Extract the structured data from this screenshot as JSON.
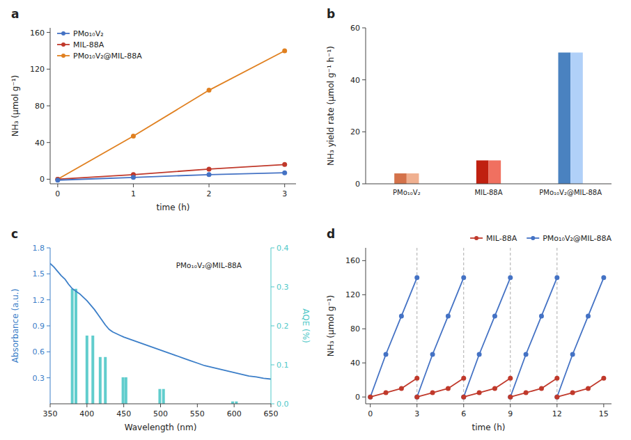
{
  "chart_data": [
    {
      "type": "line",
      "title": "a",
      "x": [
        0,
        1,
        2,
        3
      ],
      "series": [
        {
          "name": "PMo₁₀V₂",
          "color": "#4472C4",
          "marker": "circle",
          "values": [
            -1,
            2,
            5,
            7
          ]
        },
        {
          "name": "MIL-88A",
          "color": "#C0392B",
          "marker": "circle",
          "values": [
            0,
            5,
            11,
            16
          ]
        },
        {
          "name": "PMo₁₀V₂@MIL-88A",
          "color": "#E08020",
          "marker": "circle",
          "values": [
            0,
            47,
            97,
            140
          ]
        }
      ],
      "xlabel": "time (h)",
      "ylabel": "NH₃ (μmol g⁻¹)",
      "xlim": [
        -0.1,
        3.15
      ],
      "xticks": [
        0,
        1,
        2,
        3
      ],
      "ylim": [
        -5,
        165
      ],
      "yticks": [
        0,
        40,
        80,
        120,
        160
      ],
      "legend": "upper-left",
      "grid": false
    },
    {
      "type": "bar",
      "title": "b",
      "categories": [
        "PMo₁₀V₂",
        "MIL-88A",
        "PMo₁₀V₂@MIL-88A"
      ],
      "series": [
        {
          "colors": [
            "#D4724A",
            "#C02010",
            "#4A82C0"
          ],
          "values": [
            4,
            9,
            50.5
          ]
        },
        {
          "colors": [
            "#F0B090",
            "#F07060",
            "#B0D0F8"
          ],
          "values": [
            4,
            9,
            50.5
          ]
        }
      ],
      "ylabel": "NH₃ yield rate (μmol g⁻¹ h⁻¹)",
      "ylim": [
        0,
        60
      ],
      "yticks": [
        0,
        20,
        40,
        60
      ],
      "grid": false
    },
    {
      "type": "combo",
      "title": "c",
      "series": [
        {
          "type": "line",
          "color": "#3B7EC8",
          "x": [
            350,
            355,
            360,
            365,
            370,
            375,
            380,
            385,
            390,
            395,
            400,
            405,
            410,
            415,
            420,
            425,
            430,
            435,
            440,
            445,
            450,
            460,
            470,
            480,
            490,
            500,
            510,
            520,
            530,
            540,
            550,
            560,
            570,
            580,
            590,
            600,
            610,
            620,
            630,
            640,
            650
          ],
          "values": [
            1.62,
            1.58,
            1.53,
            1.48,
            1.44,
            1.38,
            1.33,
            1.3,
            1.27,
            1.23,
            1.19,
            1.14,
            1.09,
            1.03,
            0.97,
            0.91,
            0.86,
            0.83,
            0.81,
            0.79,
            0.77,
            0.74,
            0.71,
            0.68,
            0.65,
            0.62,
            0.59,
            0.56,
            0.53,
            0.5,
            0.47,
            0.44,
            0.42,
            0.4,
            0.38,
            0.36,
            0.34,
            0.32,
            0.31,
            0.295,
            0.285
          ]
        },
        {
          "type": "bar",
          "axis": "y2",
          "color": "#50C8C8",
          "x": [
            380,
            385,
            400,
            408,
            418,
            425,
            449,
            453,
            499,
            504,
            598,
            603
          ],
          "values": [
            0.295,
            0.295,
            0.175,
            0.175,
            0.12,
            0.12,
            0.068,
            0.068,
            0.038,
            0.038,
            0.006,
            0.006
          ]
        }
      ],
      "xlabel": "Wavelength (nm)",
      "ylabel": "Absorbance (a.u.)",
      "y2label": "AQE (%)",
      "xlim": [
        350,
        650
      ],
      "xticks": [
        350,
        400,
        450,
        500,
        550,
        600,
        650
      ],
      "ylim": [
        0,
        1.8
      ],
      "yticks": [
        0.3,
        0.6,
        0.9,
        1.2,
        1.5,
        1.8
      ],
      "y2lim": [
        0,
        0.4
      ],
      "y2ticks": [
        {
          "value": 0,
          "label": "0.0"
        },
        0.1,
        0.2,
        0.3,
        0.4
      ],
      "annotation": "PMo₁₀V₂@MIL-88A",
      "grid": false
    },
    {
      "type": "line",
      "title": "d",
      "x": [
        0,
        1,
        2,
        3,
        null,
        3,
        4,
        5,
        6,
        null,
        6,
        7,
        8,
        9,
        null,
        9,
        10,
        11,
        12,
        null,
        12,
        13,
        14,
        15
      ],
      "series": [
        {
          "name": "MIL-88A",
          "color": "#C0392B",
          "marker": "circle",
          "values": [
            0,
            5,
            10,
            22,
            null,
            0,
            5,
            10,
            22,
            null,
            0,
            5,
            10,
            22,
            null,
            0,
            5,
            10,
            22,
            null,
            0,
            5,
            10,
            22
          ]
        },
        {
          "name": "PMo₁₀V₂@MIL-88A",
          "color": "#4472C4",
          "marker": "circle",
          "values": [
            0,
            50,
            95,
            140,
            null,
            0,
            50,
            95,
            140,
            null,
            0,
            50,
            95,
            140,
            null,
            0,
            50,
            95,
            140,
            null,
            0,
            50,
            95,
            140
          ]
        }
      ],
      "vlines": [
        3,
        6,
        9,
        12
      ],
      "xlabel": "time (h)",
      "ylabel": "NH₃ (μmol g⁻¹)",
      "xlim": [
        -0.3,
        15.5
      ],
      "xticks": [
        0,
        3,
        6,
        9,
        12,
        15
      ],
      "ylim": [
        -8,
        175
      ],
      "yticks": [
        0,
        40,
        80,
        120,
        160
      ],
      "legend": "upper-right",
      "grid": false
    }
  ]
}
